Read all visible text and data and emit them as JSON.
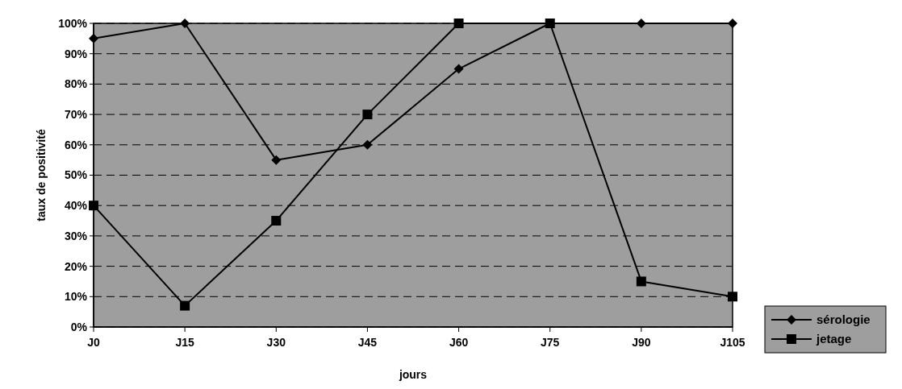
{
  "chart_data": {
    "type": "line",
    "xlabel": "jours",
    "ylabel": "taux de positivité",
    "categories": [
      "J0",
      "J15",
      "J30",
      "J45",
      "J60",
      "J75",
      "J90",
      "J105"
    ],
    "series": [
      {
        "name": "sérologie",
        "color": "#000000",
        "marker": "diamond",
        "values": [
          95,
          100,
          55,
          60,
          85,
          100,
          100,
          100
        ]
      },
      {
        "name": "jetage",
        "color": "#000000",
        "marker": "square",
        "values": [
          40,
          7,
          35,
          70,
          100,
          100,
          15,
          10
        ]
      }
    ],
    "ylim": [
      0,
      100
    ],
    "yticks": [
      {
        "value": 0,
        "label": "0%"
      },
      {
        "value": 10,
        "label": "10%"
      },
      {
        "value": 20,
        "label": "20%"
      },
      {
        "value": 30,
        "label": "30%"
      },
      {
        "value": 40,
        "label": "40%"
      },
      {
        "value": 50,
        "label": "50%"
      },
      {
        "value": 60,
        "label": "60%"
      },
      {
        "value": 70,
        "label": "70%"
      },
      {
        "value": 80,
        "label": "80%"
      },
      {
        "value": 90,
        "label": "90%"
      },
      {
        "value": 100,
        "label": "100%"
      }
    ],
    "grid": "y",
    "legend": "bottom right"
  }
}
